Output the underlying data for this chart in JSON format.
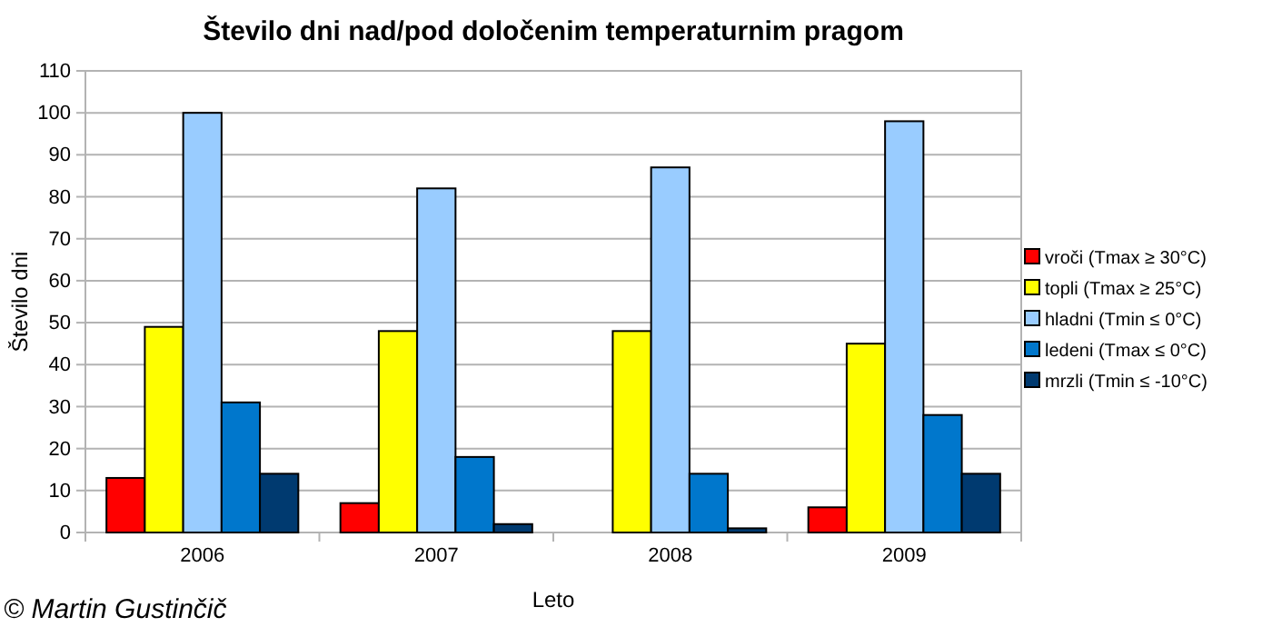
{
  "chart_data": {
    "type": "bar",
    "title": "Število dni nad/pod določenim temperaturnim pragom",
    "xlabel": "Leto",
    "ylabel": "Število dni",
    "categories": [
      "2006",
      "2007",
      "2008",
      "2009"
    ],
    "series": [
      {
        "name": "vroči (Tmax ≥ 30°C)",
        "color": "#ff0000",
        "values": [
          13,
          7,
          0,
          6
        ]
      },
      {
        "name": "topli (Tmax ≥ 25°C)",
        "color": "#ffff00",
        "values": [
          49,
          48,
          48,
          45
        ]
      },
      {
        "name": "hladni (Tmin ≤ 0°C)",
        "color": "#99ccff",
        "values": [
          100,
          82,
          87,
          98
        ]
      },
      {
        "name": "ledeni (Tmax ≤ 0°C)",
        "color": "#0077cc",
        "values": [
          31,
          18,
          14,
          28
        ]
      },
      {
        "name": "mrzli (Tmin ≤ -10°C)",
        "color": "#003a70",
        "values": [
          14,
          2,
          1,
          14
        ]
      }
    ],
    "ylim": [
      0,
      110
    ],
    "yticks": [
      0,
      10,
      20,
      30,
      40,
      50,
      60,
      70,
      80,
      90,
      100,
      110
    ],
    "grid": "y",
    "legend": "right",
    "annotations": [
      "© Martin Gustinčič"
    ]
  }
}
